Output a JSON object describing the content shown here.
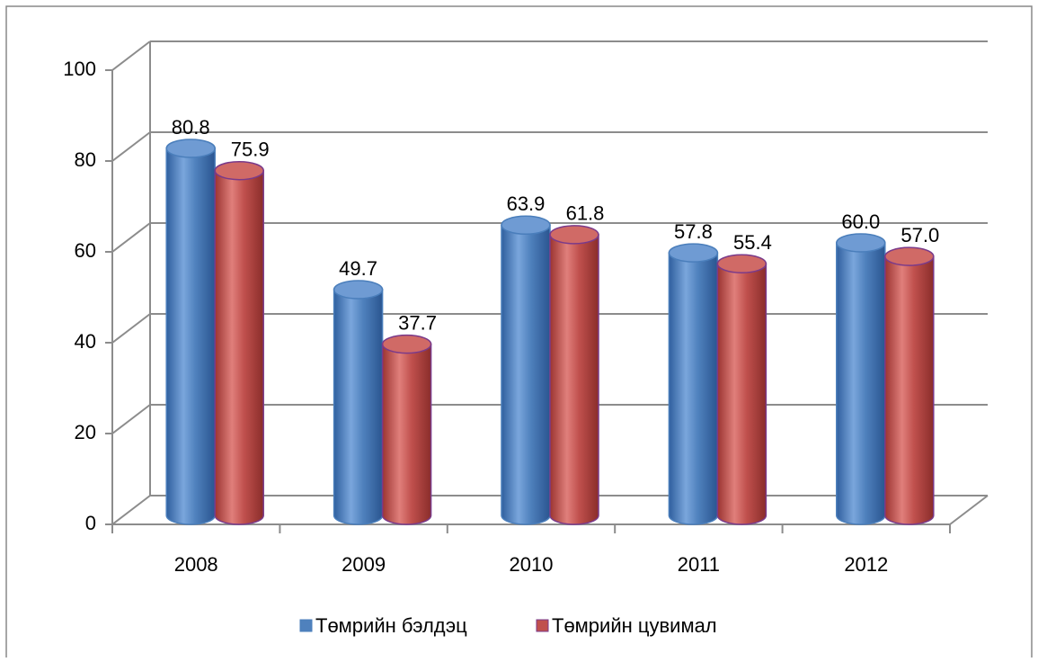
{
  "chart_data": {
    "type": "bar3d",
    "categories": [
      "2008",
      "2009",
      "2010",
      "2011",
      "2012"
    ],
    "series": [
      {
        "name": "Төмрийн бэлдэц",
        "color": "#4f81bd",
        "values": [
          80.8,
          49.7,
          63.9,
          57.8,
          60.0
        ],
        "value_labels": [
          "80.8",
          "49.7",
          "63.9",
          "57.8",
          "60.0"
        ]
      },
      {
        "name": "Төмрийн цувимал",
        "color": "#c0504d",
        "values": [
          75.9,
          37.7,
          61.8,
          55.4,
          57.0
        ],
        "value_labels": [
          "75.9",
          "37.7",
          "61.8",
          "55.4",
          "57.0"
        ]
      }
    ],
    "ylim": [
      0,
      100
    ],
    "yticks": [
      0,
      20,
      40,
      60,
      80,
      100
    ],
    "grid": true,
    "legend": "bottom"
  }
}
